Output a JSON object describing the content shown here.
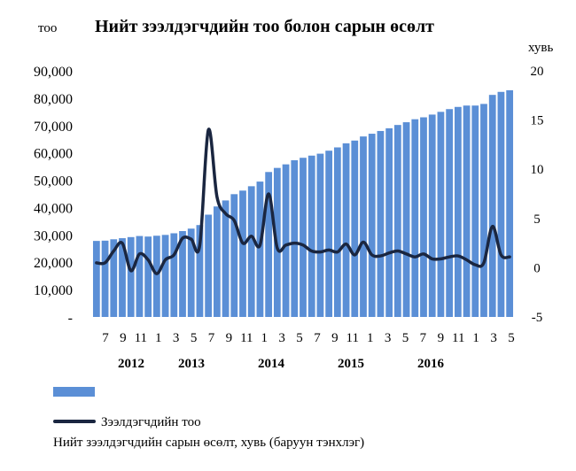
{
  "chart_data": {
    "type": "bar",
    "title": "Нийт зээлдэгчдийн тоо болон сарын өсөлт",
    "left_axis": {
      "unit": "тоо",
      "ylim": [
        0,
        90000
      ],
      "tick_labels": [
        "-",
        "10,000",
        "20,000",
        "30,000",
        "40,000",
        "50,000",
        "60,000",
        "70,000",
        "80,000",
        "90,000"
      ]
    },
    "right_axis": {
      "unit": "хувь",
      "ylim": [
        -5,
        20
      ],
      "tick_labels": [
        "-5",
        "0",
        "5",
        "10",
        "15",
        "20"
      ]
    },
    "x_month_labels": [
      "7",
      "9",
      "11",
      "1",
      "3",
      "5",
      "7",
      "9",
      "11",
      "1",
      "3",
      "5",
      "7",
      "9",
      "11",
      "1",
      "3",
      "5",
      "7",
      "9",
      "11",
      "1",
      "3",
      "5"
    ],
    "x_year_labels": [
      "2012",
      "2013",
      "2014",
      "2015",
      "2016"
    ],
    "series": [
      {
        "name": "Зээлдэгчдийн тоо",
        "type": "bar",
        "axis": "left",
        "color": "#5b8fd6",
        "values": [
          27800,
          27900,
          28400,
          28800,
          29200,
          29600,
          29400,
          29700,
          30000,
          30600,
          31400,
          32300,
          33600,
          37400,
          40400,
          42600,
          44900,
          46200,
          47800,
          49500,
          53000,
          54500,
          55800,
          57300,
          58200,
          59000,
          59700,
          60800,
          62000,
          63500,
          64500,
          66000,
          67000,
          68000,
          69000,
          70200,
          71200,
          72300,
          73000,
          74000,
          75000,
          76000,
          76800,
          77300,
          77300,
          77900,
          81200,
          82300,
          82900
        ]
      },
      {
        "name": "Нийт зээлдэгчдийн сарын өсөлт, хувь (баруун тэнхлэг)",
        "type": "line",
        "axis": "right",
        "color": "#1a2640",
        "values": [
          0.5,
          0.5,
          1.7,
          2.5,
          -0.3,
          1.4,
          0.8,
          -0.6,
          0.8,
          1.3,
          3.0,
          2.9,
          2.3,
          14.0,
          7.2,
          5.5,
          4.8,
          2.5,
          3.2,
          2.3,
          7.5,
          2.0,
          2.3,
          2.5,
          2.3,
          1.7,
          1.6,
          1.8,
          1.6,
          2.4,
          1.3,
          2.6,
          1.3,
          1.2,
          1.5,
          1.7,
          1.4,
          1.1,
          1.4,
          0.9,
          0.9,
          1.1,
          1.2,
          0.8,
          0.3,
          0.5,
          4.2,
          1.3,
          1.1
        ]
      }
    ],
    "legend_position": "bottom",
    "grid": false
  }
}
